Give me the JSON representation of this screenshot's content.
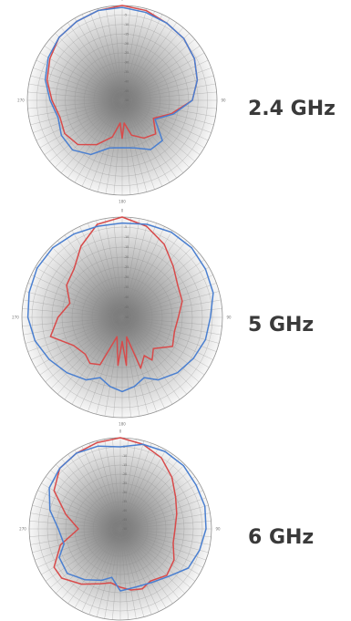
{
  "colors": {
    "series_red": "#d84a4a",
    "series_blue": "#4a7fd0",
    "label_text": "#3a3a3a"
  },
  "chart_data": [
    {
      "type": "polar-line",
      "frequency_label": "2.4 GHz",
      "angle_tick_labels": [
        "0",
        "90",
        "180",
        "270"
      ],
      "radial_tick_labels": [
        "-5",
        "-10",
        "-15",
        "-20",
        "-25",
        "-30",
        "-35",
        "-40",
        "-45",
        "-50"
      ],
      "r_range": [
        -50,
        0
      ],
      "grid": true,
      "series": [
        {
          "color": "#d84a4a",
          "points": [
            [
              0,
              0
            ],
            [
              15,
              -1
            ],
            [
              30,
              -3
            ],
            [
              45,
              -4
            ],
            [
              60,
              -6
            ],
            [
              75,
              -9
            ],
            [
              90,
              -13
            ],
            [
              105,
              -23
            ],
            [
              120,
              -31
            ],
            [
              135,
              -25
            ],
            [
              150,
              -27
            ],
            [
              165,
              -31
            ],
            [
              175,
              -38
            ],
            [
              180,
              -30
            ],
            [
              185,
              -38
            ],
            [
              195,
              -30
            ],
            [
              210,
              -23
            ],
            [
              225,
              -17
            ],
            [
              240,
              -15
            ],
            [
              255,
              -16
            ],
            [
              270,
              -13
            ],
            [
              285,
              -9
            ],
            [
              300,
              -6
            ],
            [
              315,
              -3
            ],
            [
              330,
              -2
            ],
            [
              345,
              -1
            ],
            [
              360,
              0
            ]
          ]
        },
        {
          "color": "#4a7fd0",
          "points": [
            [
              0,
              -1
            ],
            [
              15,
              -2
            ],
            [
              30,
              -3
            ],
            [
              45,
              -4
            ],
            [
              60,
              -6
            ],
            [
              75,
              -9
            ],
            [
              90,
              -13
            ],
            [
              105,
              -22
            ],
            [
              120,
              -30
            ],
            [
              135,
              -20
            ],
            [
              150,
              -20
            ],
            [
              165,
              -24
            ],
            [
              180,
              -25
            ],
            [
              195,
              -24
            ],
            [
              210,
              -17
            ],
            [
              225,
              -13
            ],
            [
              240,
              -13
            ],
            [
              255,
              -15
            ],
            [
              270,
              -12
            ],
            [
              285,
              -8
            ],
            [
              300,
              -5
            ],
            [
              315,
              -3
            ],
            [
              330,
              -2
            ],
            [
              345,
              -1
            ],
            [
              360,
              -1
            ]
          ]
        }
      ]
    },
    {
      "type": "polar-line",
      "frequency_label": "5 GHz",
      "angle_tick_labels": [
        "0",
        "90",
        "180",
        "270"
      ],
      "radial_tick_labels": [
        "-5",
        "-10",
        "-15",
        "-20",
        "-25",
        "-30",
        "-35",
        "-40",
        "-45",
        "-50"
      ],
      "r_range": [
        -50,
        0
      ],
      "grid": true,
      "series": [
        {
          "color": "#d84a4a",
          "points": [
            [
              0,
              0
            ],
            [
              15,
              -3
            ],
            [
              30,
              -8
            ],
            [
              45,
              -14
            ],
            [
              60,
              -18
            ],
            [
              75,
              -19
            ],
            [
              90,
              -22
            ],
            [
              105,
              -23
            ],
            [
              120,
              -21
            ],
            [
              135,
              -28
            ],
            [
              145,
              -24
            ],
            [
              150,
              -28
            ],
            [
              160,
              -23
            ],
            [
              167,
              -40
            ],
            [
              175,
              -26
            ],
            [
              180,
              -38
            ],
            [
              185,
              -26
            ],
            [
              195,
              -40
            ],
            [
              205,
              -24
            ],
            [
              215,
              -22
            ],
            [
              225,
              -24
            ],
            [
              240,
              -22
            ],
            [
              255,
              -13
            ],
            [
              270,
              -18
            ],
            [
              285,
              -23
            ],
            [
              300,
              -18
            ],
            [
              315,
              -16
            ],
            [
              330,
              -9
            ],
            [
              345,
              -2
            ],
            [
              360,
              0
            ]
          ]
        },
        {
          "color": "#4a7fd0",
          "points": [
            [
              0,
              -3
            ],
            [
              15,
              -2
            ],
            [
              30,
              -1
            ],
            [
              45,
              -1
            ],
            [
              60,
              -2
            ],
            [
              75,
              -3
            ],
            [
              90,
              -6
            ],
            [
              105,
              -7
            ],
            [
              120,
              -9
            ],
            [
              135,
              -11
            ],
            [
              150,
              -14
            ],
            [
              160,
              -18
            ],
            [
              170,
              -15
            ],
            [
              180,
              -13
            ],
            [
              190,
              -15
            ],
            [
              200,
              -18
            ],
            [
              210,
              -14
            ],
            [
              225,
              -11
            ],
            [
              240,
              -8
            ],
            [
              255,
              -5
            ],
            [
              270,
              -3
            ],
            [
              285,
              -2
            ],
            [
              300,
              -1
            ],
            [
              315,
              -1
            ],
            [
              330,
              -2
            ],
            [
              345,
              -3
            ],
            [
              360,
              -3
            ]
          ]
        }
      ]
    },
    {
      "type": "polar-line",
      "frequency_label": "6 GHz",
      "angle_tick_labels": [
        "0",
        "90",
        "180",
        "270"
      ],
      "radial_tick_labels": [
        "-5",
        "-10",
        "-15",
        "-20",
        "-25",
        "-30",
        "-35",
        "-40",
        "-45",
        "-50"
      ],
      "r_range": [
        -50,
        0
      ],
      "grid": true,
      "series": [
        {
          "color": "#d84a4a",
          "points": [
            [
              0,
              0
            ],
            [
              15,
              -2
            ],
            [
              30,
              -5
            ],
            [
              45,
              -10
            ],
            [
              60,
              -15
            ],
            [
              75,
              -18
            ],
            [
              90,
              -20
            ],
            [
              105,
              -20
            ],
            [
              120,
              -16
            ],
            [
              135,
              -14
            ],
            [
              150,
              -17
            ],
            [
              160,
              -15
            ],
            [
              170,
              -16
            ],
            [
              180,
              -18
            ],
            [
              190,
              -20
            ],
            [
              200,
              -18
            ],
            [
              215,
              -13
            ],
            [
              230,
              -8
            ],
            [
              240,
              -8
            ],
            [
              255,
              -16
            ],
            [
              270,
              -27
            ],
            [
              285,
              -19
            ],
            [
              300,
              -8
            ],
            [
              315,
              -3
            ],
            [
              330,
              -2
            ],
            [
              345,
              -1
            ],
            [
              360,
              0
            ]
          ]
        },
        {
          "color": "#4a7fd0",
          "points": [
            [
              0,
              -5
            ],
            [
              15,
              -2
            ],
            [
              30,
              -1
            ],
            [
              45,
              -1
            ],
            [
              60,
              -2
            ],
            [
              75,
              -2
            ],
            [
              90,
              -3
            ],
            [
              105,
              -5
            ],
            [
              120,
              -7
            ],
            [
              135,
              -13
            ],
            [
              150,
              -16
            ],
            [
              165,
              -17
            ],
            [
              180,
              -16
            ],
            [
              190,
              -23
            ],
            [
              200,
              -20
            ],
            [
              215,
              -16
            ],
            [
              230,
              -12
            ],
            [
              245,
              -13
            ],
            [
              255,
              -18
            ],
            [
              270,
              -16
            ],
            [
              285,
              -10
            ],
            [
              300,
              -5
            ],
            [
              315,
              -3
            ],
            [
              330,
              -2
            ],
            [
              345,
              -3
            ],
            [
              360,
              -5
            ]
          ]
        }
      ]
    }
  ]
}
